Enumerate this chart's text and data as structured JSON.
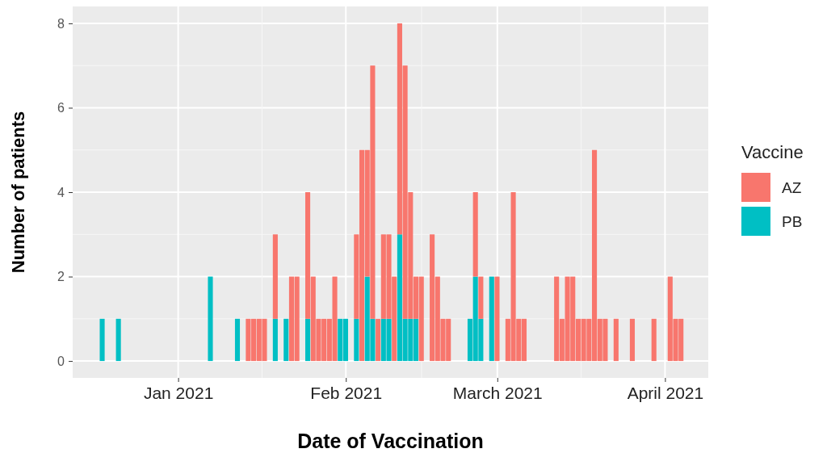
{
  "chart_data": {
    "type": "bar",
    "stacked": true,
    "xlabel": "Date of Vaccination",
    "ylabel": "Number of patients",
    "legend_title": "Vaccine",
    "legend": "right",
    "grid": true,
    "x": [
      "2020-12-18",
      "2020-12-21",
      "2021-01-07",
      "2021-01-12",
      "2021-01-14",
      "2021-01-15",
      "2021-01-16",
      "2021-01-17",
      "2021-01-19",
      "2021-01-21",
      "2021-01-22",
      "2021-01-23",
      "2021-01-25",
      "2021-01-26",
      "2021-01-27",
      "2021-01-28",
      "2021-01-29",
      "2021-01-30",
      "2021-01-31",
      "2021-02-01",
      "2021-02-03",
      "2021-02-04",
      "2021-02-05",
      "2021-02-06",
      "2021-02-07",
      "2021-02-08",
      "2021-02-09",
      "2021-02-10",
      "2021-02-11",
      "2021-02-12",
      "2021-02-13",
      "2021-02-14",
      "2021-02-15",
      "2021-02-17",
      "2021-02-18",
      "2021-02-19",
      "2021-02-20",
      "2021-02-24",
      "2021-02-25",
      "2021-02-26",
      "2021-02-28",
      "2021-03-01",
      "2021-03-03",
      "2021-03-04",
      "2021-03-05",
      "2021-03-06",
      "2021-03-12",
      "2021-03-13",
      "2021-03-14",
      "2021-03-15",
      "2021-03-16",
      "2021-03-17",
      "2021-03-18",
      "2021-03-19",
      "2021-03-20",
      "2021-03-21",
      "2021-03-23",
      "2021-03-26",
      "2021-03-30",
      "2021-04-02",
      "2021-04-03",
      "2021-04-04"
    ],
    "series": [
      {
        "name": "PB",
        "color": "#00bfc4",
        "values": [
          1,
          1,
          2,
          1,
          0,
          0,
          0,
          0,
          1,
          1,
          0,
          0,
          1,
          0,
          0,
          0,
          0,
          0,
          1,
          1,
          1,
          0,
          2,
          1,
          0,
          1,
          1,
          0,
          3,
          1,
          1,
          1,
          0,
          0,
          0,
          0,
          0,
          1,
          2,
          1,
          2,
          0,
          0,
          0,
          0,
          0,
          0,
          0,
          0,
          0,
          0,
          0,
          0,
          0,
          0,
          0,
          0,
          0,
          0,
          0,
          0,
          0
        ]
      },
      {
        "name": "AZ",
        "color": "#f8766d",
        "values": [
          0,
          0,
          0,
          0,
          1,
          1,
          1,
          1,
          2,
          0,
          2,
          2,
          3,
          2,
          1,
          1,
          1,
          2,
          0,
          0,
          2,
          5,
          3,
          6,
          1,
          2,
          2,
          2,
          5,
          6,
          3,
          1,
          2,
          3,
          2,
          1,
          1,
          0,
          2,
          1,
          0,
          2,
          1,
          4,
          1,
          1,
          2,
          1,
          2,
          2,
          1,
          1,
          1,
          5,
          1,
          1,
          1,
          1,
          1,
          2,
          1,
          1
        ]
      }
    ],
    "xlim": [
      "2020-12-12T12:00",
      "2021-04-09"
    ],
    "xticks": [
      {
        "value": "2021-01-01",
        "label": "Jan 2021"
      },
      {
        "value": "2021-02-01",
        "label": "Feb 2021"
      },
      {
        "value": "2021-03-01",
        "label": "March 2021"
      },
      {
        "value": "2021-04-01",
        "label": "April 2021"
      }
    ],
    "ylim": [
      -0.4,
      8.4
    ],
    "yticks": [
      0,
      2,
      4,
      6,
      8
    ]
  }
}
